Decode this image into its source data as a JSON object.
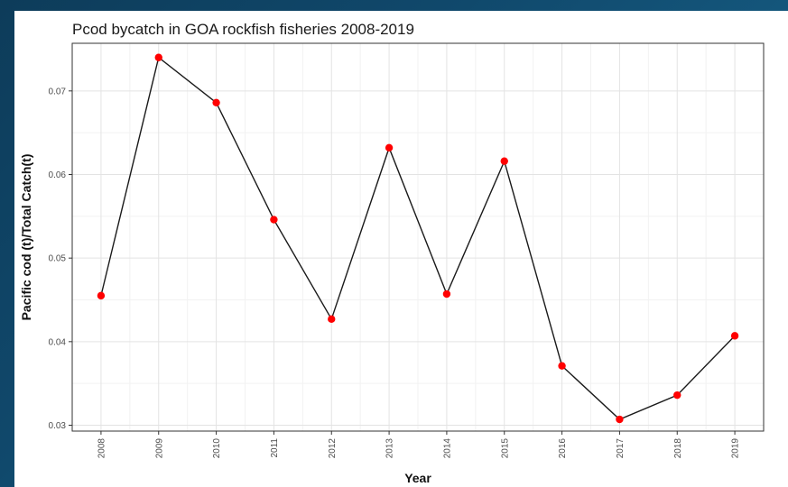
{
  "chart_data": {
    "type": "line",
    "title": "Pcod bycatch in GOA rockfish fisheries 2008-2019",
    "xlabel": "Year",
    "ylabel": "Pacific cod (t)/Total Catch(t)",
    "categories": [
      "2008",
      "2009",
      "2010",
      "2011",
      "2012",
      "2013",
      "2014",
      "2015",
      "2016",
      "2017",
      "2018",
      "2019"
    ],
    "series": [
      {
        "values": [
          0.0455,
          0.074,
          0.0686,
          0.0546,
          0.0427,
          0.0632,
          0.0457,
          0.0616,
          0.0371,
          0.0307,
          0.0336,
          0.0407
        ],
        "line_color": "#1a1a1a",
        "point_color": "#ff0000"
      }
    ],
    "yticks": [
      0.03,
      0.04,
      0.05,
      0.06,
      0.07
    ],
    "ytick_labels": [
      "0.03",
      "0.04",
      "0.05",
      "0.06",
      "0.07"
    ],
    "ylim": [
      0.0293,
      0.0757
    ],
    "grid": true,
    "panel_border": true,
    "background": "#ffffff"
  }
}
